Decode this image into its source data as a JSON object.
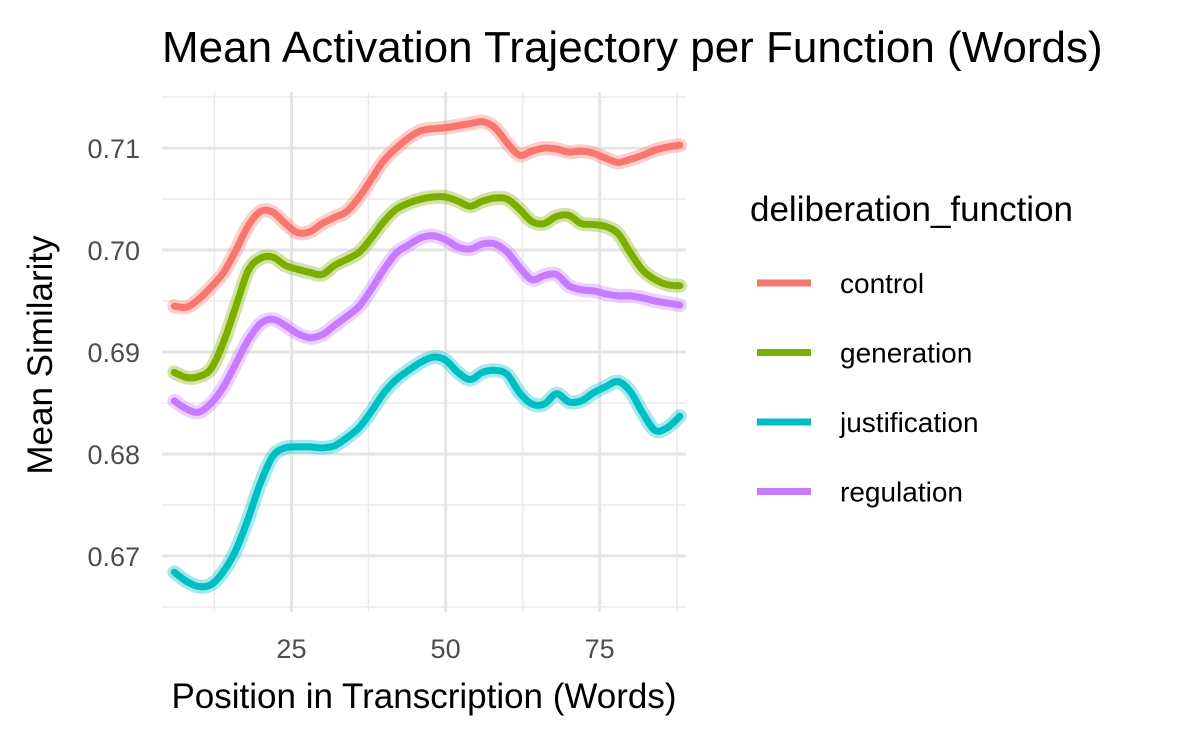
{
  "chart_data": {
    "type": "line",
    "title": "Mean Activation Trajectory per Function (Words)",
    "xlabel": "Position in Transcription (Words)",
    "ylabel": "Mean Similarity",
    "xlim": [
      4,
      89
    ],
    "ylim": [
      0.6645,
      0.7155
    ],
    "x_ticks": [
      25,
      50,
      75
    ],
    "x_tick_labels": [
      "25",
      "50",
      "75"
    ],
    "y_ticks": [
      0.67,
      0.68,
      0.69,
      0.7,
      0.71
    ],
    "y_tick_labels": [
      "0.67",
      "0.68",
      "0.69",
      "0.70",
      "0.71"
    ],
    "grid": true,
    "legend": {
      "title": "deliberation_function",
      "position": "right"
    },
    "x": [
      6,
      8,
      10,
      12,
      14,
      16,
      18,
      20,
      22,
      24,
      26,
      28,
      30,
      32,
      34,
      36,
      38,
      40,
      42,
      44,
      46,
      48,
      50,
      52,
      54,
      56,
      58,
      60,
      62,
      64,
      66,
      68,
      70,
      72,
      74,
      76,
      78,
      80,
      82,
      84,
      86,
      88
    ],
    "series": [
      {
        "name": "control",
        "color": "#F8766D",
        "values": [
          0.6945,
          0.6944,
          0.6952,
          0.6964,
          0.6978,
          0.7,
          0.7024,
          0.7038,
          0.7037,
          0.7026,
          0.7017,
          0.7018,
          0.7026,
          0.7032,
          0.7038,
          0.7052,
          0.707,
          0.7088,
          0.71,
          0.711,
          0.7117,
          0.7119,
          0.712,
          0.7122,
          0.7124,
          0.7126,
          0.712,
          0.7105,
          0.7093,
          0.7097,
          0.71,
          0.7099,
          0.7096,
          0.7097,
          0.7095,
          0.709,
          0.7086,
          0.7089,
          0.7093,
          0.7098,
          0.7101,
          0.7103
        ]
      },
      {
        "name": "generation",
        "color": "#7CAE00",
        "values": [
          0.688,
          0.6875,
          0.6876,
          0.6884,
          0.691,
          0.6945,
          0.698,
          0.6992,
          0.6993,
          0.6985,
          0.6981,
          0.6978,
          0.6976,
          0.6985,
          0.6991,
          0.6998,
          0.7012,
          0.7028,
          0.704,
          0.7046,
          0.705,
          0.7052,
          0.7052,
          0.7048,
          0.7043,
          0.7048,
          0.7051,
          0.705,
          0.704,
          0.7028,
          0.7026,
          0.7033,
          0.7034,
          0.7026,
          0.7025,
          0.7023,
          0.7016,
          0.6997,
          0.698,
          0.6971,
          0.6966,
          0.6965
        ]
      },
      {
        "name": "justification",
        "color": "#00BFC4",
        "values": [
          0.6684,
          0.6675,
          0.667,
          0.6672,
          0.6685,
          0.6706,
          0.6737,
          0.6772,
          0.6798,
          0.6806,
          0.6807,
          0.6807,
          0.6806,
          0.6808,
          0.6816,
          0.6826,
          0.6842,
          0.686,
          0.6873,
          0.6882,
          0.689,
          0.6895,
          0.6892,
          0.688,
          0.6873,
          0.688,
          0.6882,
          0.6878,
          0.686,
          0.6849,
          0.6849,
          0.6859,
          0.6851,
          0.6852,
          0.686,
          0.6866,
          0.6871,
          0.6861,
          0.684,
          0.6823,
          0.6826,
          0.6837
        ]
      },
      {
        "name": "regulation",
        "color": "#C77CFF",
        "values": [
          0.6852,
          0.6844,
          0.6841,
          0.685,
          0.6866,
          0.6889,
          0.6912,
          0.6928,
          0.6932,
          0.6926,
          0.6918,
          0.6914,
          0.6917,
          0.6926,
          0.6935,
          0.6945,
          0.6962,
          0.6981,
          0.6997,
          0.7005,
          0.7012,
          0.7014,
          0.701,
          0.7003,
          0.7001,
          0.7006,
          0.7006,
          0.6998,
          0.6983,
          0.6971,
          0.6975,
          0.6976,
          0.6965,
          0.6961,
          0.696,
          0.6957,
          0.6955,
          0.6955,
          0.6953,
          0.695,
          0.6948,
          0.6946
        ]
      }
    ]
  }
}
